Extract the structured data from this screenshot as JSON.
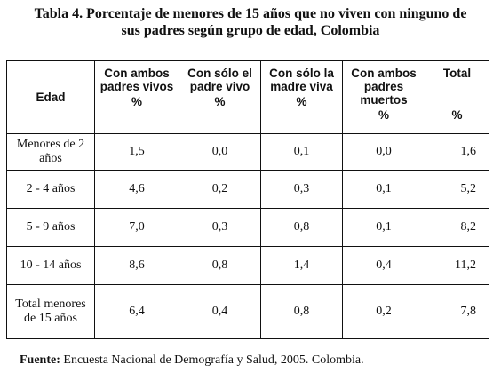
{
  "title": {
    "line1": "Tabla 4. Porcentaje de menores de 15 años que no viven con ninguno de",
    "line2": "sus padres según grupo de edad, Colombia"
  },
  "table": {
    "headers": [
      {
        "label": "Edad",
        "unit": ""
      },
      {
        "label": "Con ambos padres vivos",
        "unit": "%"
      },
      {
        "label": "Con sólo el padre vivo",
        "unit": "%"
      },
      {
        "label": "Con sólo la madre viva",
        "unit": "%"
      },
      {
        "label": "Con ambos padres muertos",
        "unit": "%"
      },
      {
        "label": "Total",
        "unit": "%"
      }
    ],
    "rows": [
      {
        "edad": "Menores de 2 años",
        "values": [
          "1,5",
          "0,0",
          "0,1",
          "0,0",
          "1,6"
        ]
      },
      {
        "edad": "2 - 4 años",
        "values": [
          "4,6",
          "0,2",
          "0,3",
          "0,1",
          "5,2"
        ]
      },
      {
        "edad": "5 - 9 años",
        "values": [
          "7,0",
          "0,3",
          "0,8",
          "0,1",
          "8,2"
        ]
      },
      {
        "edad": "10 - 14 años",
        "values": [
          "8,6",
          "0,8",
          "1,4",
          "0,4",
          "11,2"
        ]
      },
      {
        "edad": "Total menores de 15 años",
        "values": [
          "6,4",
          "0,4",
          "0,8",
          "0,2",
          "7,8"
        ]
      }
    ]
  },
  "source": {
    "label": "Fuente:",
    "text": " Encuesta Nacional de Demografía y Salud, 2005. Colombia."
  }
}
